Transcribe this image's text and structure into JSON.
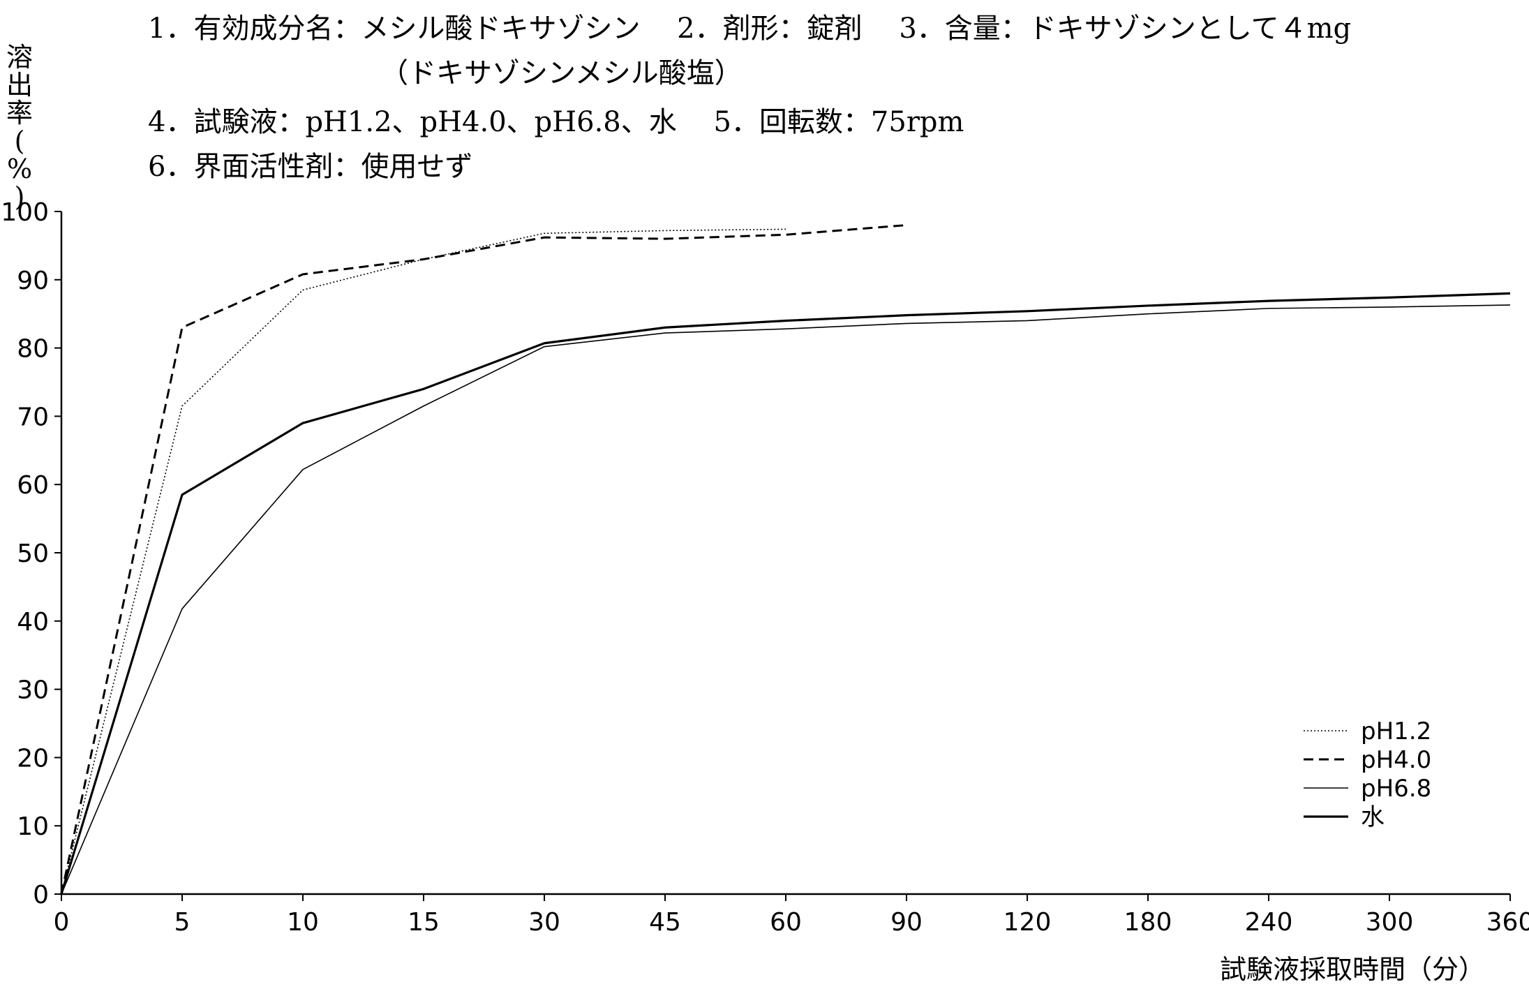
{
  "header": {
    "line1": "1．有効成分名：メシル酸ドキサゾシン　 2．剤形：錠剤　 3．含量：ドキサゾシンとして４mg",
    "line2": "（ドキサゾシンメシル酸塩）",
    "line3": "4．試験液：pH1.2、pH4.0、pH6.8、水　 5．回転数：75rpm",
    "line4": "6．界面活性剤：使用せず"
  },
  "chart_data": {
    "type": "line",
    "title": "",
    "xlabel": "試験液採取時間（分）",
    "ylabel": "溶出率(%)",
    "ylabel_chars": [
      "溶",
      "出",
      "率",
      "(",
      "%",
      ")"
    ],
    "x_scale": "categorical (unequally spaced time points)",
    "categories": [
      "0",
      "5",
      "10",
      "15",
      "30",
      "45",
      "60",
      "90",
      "120",
      "180",
      "240",
      "300",
      "360"
    ],
    "yticks": [
      "0",
      "10",
      "20",
      "30",
      "40",
      "50",
      "60",
      "70",
      "80",
      "90",
      "100"
    ],
    "ylim": [
      0,
      100
    ],
    "grid": false,
    "legend_position": "bottom-right",
    "series": [
      {
        "name": "pH1.2",
        "style": "dotted",
        "x": [
          "0",
          "5",
          "10",
          "15",
          "30",
          "45",
          "60"
        ],
        "values": [
          0,
          71.5,
          88.5,
          93,
          96.8,
          97.2,
          97.4
        ]
      },
      {
        "name": "pH4.0",
        "style": "dashed",
        "x": [
          "0",
          "5",
          "10",
          "15",
          "30",
          "45",
          "60",
          "90"
        ],
        "values": [
          0,
          83,
          90.8,
          93,
          96.2,
          96,
          96.6,
          98
        ]
      },
      {
        "name": "pH6.8",
        "style": "thin-solid",
        "x": [
          "0",
          "5",
          "10",
          "15",
          "30",
          "45",
          "60",
          "90",
          "120",
          "180",
          "240",
          "300",
          "360"
        ],
        "values": [
          0,
          41.8,
          62.2,
          71.5,
          80.2,
          82.2,
          82.8,
          83.6,
          84,
          85,
          85.8,
          86,
          86.3
        ]
      },
      {
        "name": "水",
        "style": "thick-solid",
        "x": [
          "0",
          "5",
          "10",
          "15",
          "30",
          "45",
          "60",
          "90",
          "120",
          "180",
          "240",
          "300",
          "360"
        ],
        "values": [
          0,
          58.5,
          69,
          74,
          80.7,
          83,
          84,
          84.8,
          85.4,
          86.2,
          86.9,
          87.4,
          88
        ]
      }
    ],
    "colors": {
      "line": "#000000",
      "axis": "#000000"
    }
  }
}
